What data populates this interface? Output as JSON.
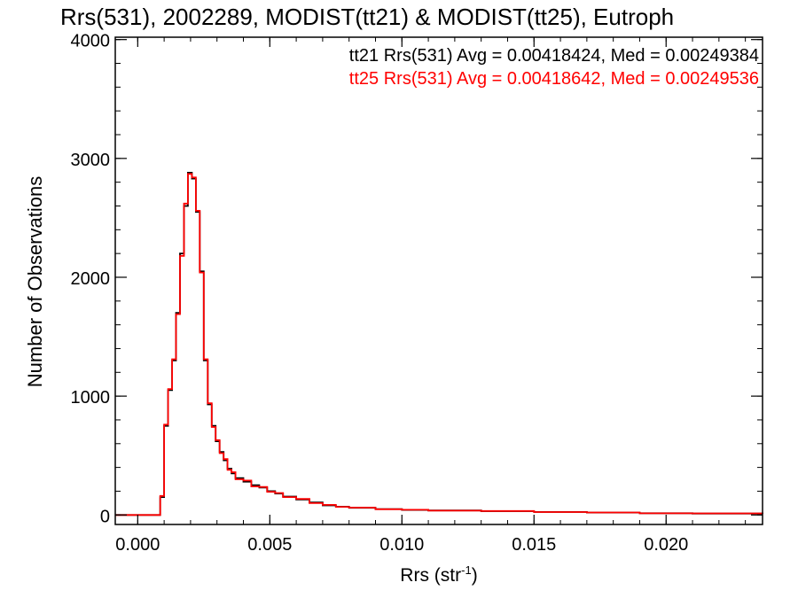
{
  "chart_data": {
    "type": "line",
    "title": "Rrs(531), 2002289, MODIST(tt21) & MODIST(tt25), Eutroph",
    "xlabel_main": "Rrs (str",
    "xlabel_sup": "-1",
    "xlabel_end": ")",
    "ylabel": "Number of Observations",
    "xlim": [
      -0.00085,
      0.02365
    ],
    "ylim": [
      -80,
      4020
    ],
    "x_ticks": [
      0.0,
      0.005,
      0.01,
      0.015,
      0.02
    ],
    "x_tick_labels": [
      "0.000",
      "0.005",
      "0.010",
      "0.015",
      "0.020"
    ],
    "y_ticks": [
      0,
      1000,
      2000,
      3000,
      4000
    ],
    "y_tick_labels": [
      "0",
      "1000",
      "2000",
      "3000",
      "4000"
    ],
    "annotations": [
      "tt21 Rrs(531) Avg = 0.00418424, Med = 0.00249384",
      "tt25 Rrs(531) Avg = 0.00418642, Med = 0.00249536"
    ],
    "series": [
      {
        "name": "tt21",
        "color": "#000000",
        "x": [
          -0.00085,
          0.0007,
          0.00085,
          0.001,
          0.00115,
          0.0013,
          0.00145,
          0.0016,
          0.00175,
          0.0019,
          0.00205,
          0.0022,
          0.00235,
          0.0025,
          0.00265,
          0.0028,
          0.00295,
          0.0031,
          0.00325,
          0.0034,
          0.00355,
          0.0037,
          0.004,
          0.0043,
          0.0046,
          0.0049,
          0.0052,
          0.0055,
          0.006,
          0.0065,
          0.007,
          0.0075,
          0.008,
          0.009,
          0.01,
          0.011,
          0.013,
          0.015,
          0.017,
          0.019,
          0.021,
          0.02365
        ],
        "values": [
          0,
          0,
          150,
          750,
          1050,
          1300,
          1700,
          2200,
          2600,
          2880,
          2830,
          2550,
          2050,
          1300,
          930,
          750,
          620,
          530,
          460,
          390,
          350,
          310,
          280,
          250,
          230,
          200,
          180,
          155,
          130,
          105,
          80,
          70,
          60,
          50,
          42,
          38,
          32,
          25,
          20,
          15,
          12,
          10
        ]
      },
      {
        "name": "tt25",
        "color": "#ff0000",
        "x": [
          -0.00085,
          0.0007,
          0.00085,
          0.001,
          0.00115,
          0.0013,
          0.00145,
          0.0016,
          0.00175,
          0.0019,
          0.00205,
          0.0022,
          0.00235,
          0.0025,
          0.00265,
          0.0028,
          0.00295,
          0.0031,
          0.00325,
          0.0034,
          0.00355,
          0.0037,
          0.004,
          0.0043,
          0.0046,
          0.0049,
          0.0052,
          0.0055,
          0.006,
          0.0065,
          0.007,
          0.0075,
          0.008,
          0.009,
          0.01,
          0.011,
          0.013,
          0.015,
          0.017,
          0.019,
          0.021,
          0.02365
        ],
        "values": [
          0,
          0,
          160,
          760,
          1060,
          1310,
          1690,
          2180,
          2620,
          2870,
          2840,
          2560,
          2040,
          1310,
          940,
          740,
          630,
          520,
          470,
          380,
          360,
          300,
          290,
          240,
          235,
          195,
          185,
          150,
          135,
          100,
          85,
          68,
          62,
          48,
          44,
          36,
          33,
          24,
          21,
          14,
          13,
          9
        ]
      }
    ]
  }
}
